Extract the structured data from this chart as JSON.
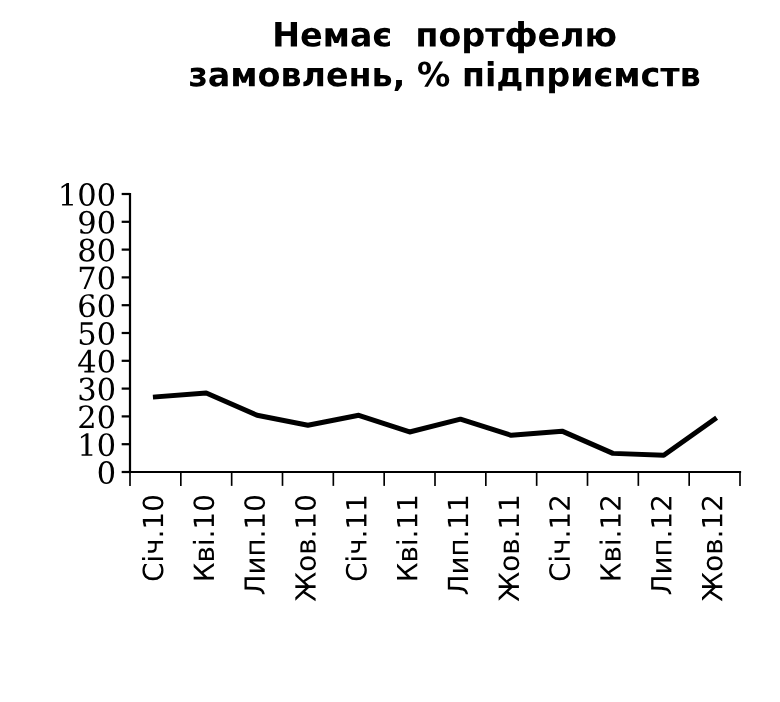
{
  "chart_data": {
    "type": "line",
    "title": "Немає  портфелю\nзамовлень, % підприємств",
    "categories": [
      "Січ.10",
      "Кві.10",
      "Лип.10",
      "Жов.10",
      "Січ.11",
      "Кві.11",
      "Лип.11",
      "Жов.11",
      "Січ.12",
      "Кві.12",
      "Лип.12",
      "Жов.12"
    ],
    "series": [
      {
        "color": "#000000",
        "values": [
          27,
          28.4,
          20.4,
          16.8,
          20.4,
          14.4,
          19,
          13.2,
          14.7,
          6.7,
          6,
          19
        ]
      }
    ],
    "ylim": [
      0,
      100
    ],
    "yticks": [
      0,
      10,
      20,
      30,
      40,
      50,
      60,
      70,
      80,
      90,
      100
    ],
    "grid": false,
    "legend": false,
    "marker": "none",
    "line_style": "solid"
  }
}
